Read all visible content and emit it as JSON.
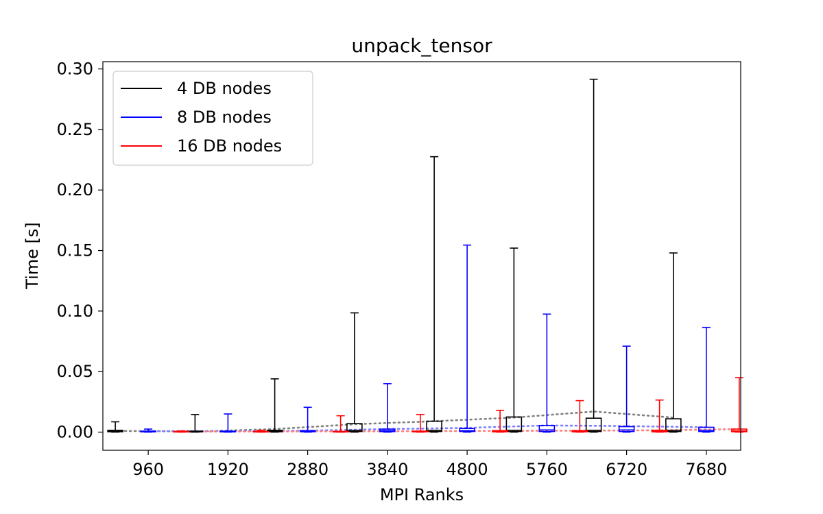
{
  "chart_data": {
    "type": "box",
    "title": "unpack_tensor",
    "xlabel": "MPI Ranks",
    "ylabel": "Time [s]",
    "categories": [
      "960",
      "1920",
      "2880",
      "3840",
      "4800",
      "5760",
      "6720",
      "7680"
    ],
    "ylim": [
      -0.015,
      0.306
    ],
    "yticks": [
      0.0,
      0.05,
      0.1,
      0.15,
      0.2,
      0.25,
      0.3
    ],
    "ytick_labels": [
      "0.00",
      "0.05",
      "0.10",
      "0.15",
      "0.20",
      "0.25",
      "0.30"
    ],
    "grid": false,
    "legend_position": "top-left",
    "series": [
      {
        "name": "4 DB nodes",
        "color": "#000000",
        "trend_color": "#808080",
        "max": [
          0.0085,
          0.0145,
          0.044,
          0.0985,
          0.2275,
          0.152,
          0.2915,
          0.148
        ],
        "q3": [
          0.0015,
          0.0008,
          0.0015,
          0.007,
          0.009,
          0.0125,
          0.0115,
          0.011
        ],
        "median": [
          0.0008,
          0.0004,
          0.0008,
          0.0015,
          0.0015,
          0.0015,
          0.0015,
          0.0015
        ],
        "q1": [
          0.0003,
          0.0002,
          0.0003,
          0.0005,
          0.0005,
          0.0005,
          0.0005,
          0.0005
        ],
        "min": [
          0.0,
          0.0,
          0.0,
          0.0,
          0.0,
          0.0,
          0.0,
          0.0
        ],
        "mean": [
          0.001,
          0.0005,
          0.0025,
          0.0065,
          0.009,
          0.012,
          0.017,
          0.012
        ]
      },
      {
        "name": "8 DB nodes",
        "color": "#0000ff",
        "trend_color": "#7f7fff",
        "max": [
          0.0025,
          0.015,
          0.0205,
          0.04,
          0.1545,
          0.0975,
          0.071,
          0.0865
        ],
        "q3": [
          0.0008,
          0.0008,
          0.0012,
          0.0025,
          0.003,
          0.0055,
          0.0045,
          0.004
        ],
        "median": [
          0.0004,
          0.0004,
          0.0006,
          0.0012,
          0.0012,
          0.0018,
          0.0018,
          0.0015
        ],
        "q1": [
          0.0002,
          0.0002,
          0.0003,
          0.0004,
          0.0005,
          0.0005,
          0.0005,
          0.0005
        ],
        "min": [
          0.0,
          0.0,
          0.0,
          0.0,
          0.0,
          0.0,
          0.0,
          0.0
        ],
        "mean": [
          0.0008,
          0.0008,
          0.0012,
          0.0025,
          0.0035,
          0.0055,
          0.005,
          0.004
        ]
      },
      {
        "name": "16 DB nodes",
        "color": "#ff0000",
        "trend_color": "#ff7f7f",
        "max": [
          0.001,
          0.0015,
          0.0135,
          0.0145,
          0.018,
          0.026,
          0.0265,
          0.045
        ],
        "q3": [
          0.0006,
          0.0006,
          0.0006,
          0.0008,
          0.0012,
          0.0012,
          0.0015,
          0.0025
        ],
        "median": [
          0.0003,
          0.0003,
          0.0003,
          0.0004,
          0.0005,
          0.0005,
          0.0006,
          0.001
        ],
        "q1": [
          0.0001,
          0.0001,
          0.0001,
          0.0002,
          0.0002,
          0.0002,
          0.0002,
          0.0003
        ],
        "min": [
          0.0,
          0.0,
          0.0,
          0.0,
          0.0,
          0.0,
          0.0,
          0.0
        ],
        "mean": [
          0.0004,
          0.0005,
          0.0006,
          0.0008,
          0.001,
          0.0012,
          0.0015,
          0.0025
        ]
      }
    ]
  }
}
